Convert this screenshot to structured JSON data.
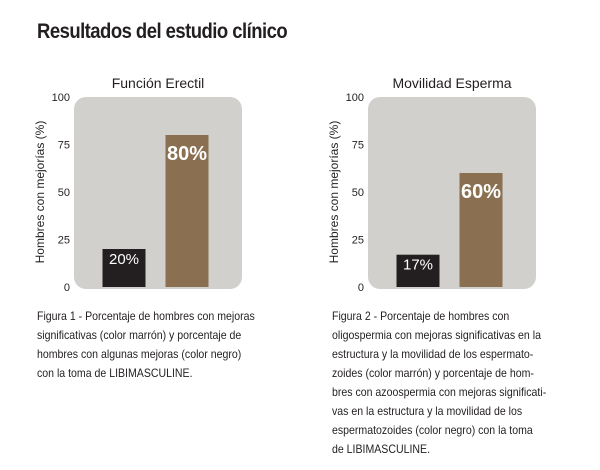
{
  "title": "Resultados del estudio clínico",
  "colors": {
    "brown": "#8a7050",
    "black": "#231f20",
    "plot_bg": "#d2d0cd"
  },
  "chart_data": [
    {
      "type": "bar",
      "title": "Función Erectil",
      "ylabel": "Hombres con mejorías (%)",
      "ylim": [
        0,
        100
      ],
      "yticks": [
        "0",
        "25",
        "50",
        "75",
        "100"
      ],
      "grid": false,
      "legend": "none",
      "categories": [
        "",
        ""
      ],
      "values": [
        20,
        80
      ],
      "value_labels": [
        "20%",
        "80%"
      ],
      "bar_colors": [
        "#231f20",
        "#8a7050"
      ]
    },
    {
      "type": "bar",
      "title": "Movilidad Esperma",
      "ylabel": "Hombres con mejorías (%)",
      "ylim": [
        0,
        100
      ],
      "yticks": [
        "0",
        "25",
        "50",
        "75",
        "100"
      ],
      "grid": false,
      "legend": "none",
      "categories": [
        "",
        ""
      ],
      "values": [
        17,
        60
      ],
      "value_labels": [
        "17%",
        "60%"
      ],
      "bar_colors": [
        "#231f20",
        "#8a7050"
      ]
    }
  ],
  "captions": [
    [
      "Figura 1 - Porcentaje de hombres con mejoras",
      "significativas (color marrón) y porcentaje de",
      "hombres con algunas mejoras (color negro)",
      "con la toma de LIBIMASCULINE."
    ],
    [
      "Figura 2 - Porcentaje de hombres con",
      "oligospermia con mejoras significativas en la",
      "estructura y la movilidad de los espermato-",
      "zoides (color marrón) y porcentaje de hom-",
      "bres con azoospermia con mejoras significati-",
      "vas en la estructura y la movilidad de los",
      "espermatozoides (color negro) con la toma",
      "de LIBIMASCULINE."
    ]
  ]
}
